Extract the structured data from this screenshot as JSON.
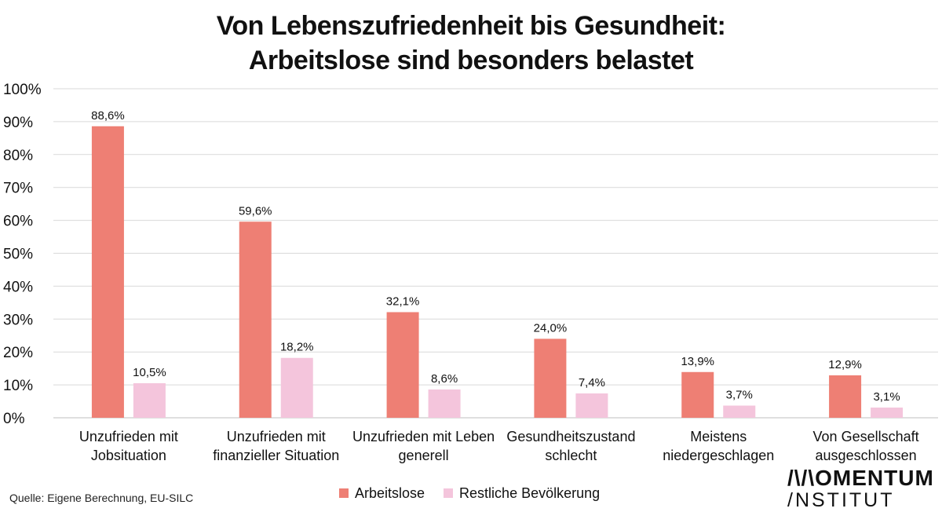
{
  "chart_data": {
    "type": "bar",
    "title_lines": [
      "Von Lebenszufriedenheit bis Gesundheit:",
      "Arbeitslose sind besonders belastet"
    ],
    "categories": [
      [
        "Unzufrieden mit",
        "Jobsituation"
      ],
      [
        "Unzufrieden mit",
        "finanzieller Situation"
      ],
      [
        "Unzufrieden mit Leben",
        "generell"
      ],
      [
        "Gesundheitszustand",
        "schlecht"
      ],
      [
        "Meistens",
        "niedergeschlagen"
      ],
      [
        "Von Gesellschaft",
        "ausgeschlossen"
      ]
    ],
    "series": [
      {
        "name": "Arbeitslose",
        "color": "#ee7f74",
        "values": [
          88.6,
          59.6,
          32.1,
          24.0,
          13.9,
          12.9
        ],
        "labels": [
          "88,6%",
          "59,6%",
          "32,1%",
          "24,0%",
          "13,9%",
          "12,9%"
        ]
      },
      {
        "name": "Restliche Bevölkerung",
        "color": "#f4c5dc",
        "values": [
          10.5,
          18.2,
          8.6,
          7.4,
          3.7,
          3.1
        ],
        "labels": [
          "10,5%",
          "18,2%",
          "8,6%",
          "7,4%",
          "3,7%",
          "3,1%"
        ]
      }
    ],
    "yticks": [
      "0%",
      "10%",
      "20%",
      "30%",
      "40%",
      "50%",
      "60%",
      "70%",
      "80%",
      "90%",
      "100%"
    ],
    "ylim": [
      0,
      100
    ],
    "grid": true,
    "legend": "bottom"
  },
  "source": "Quelle: Eigene Berechnung, EU-SILC",
  "logo": {
    "line1": "/\\/\\OMENTUM",
    "line2": "/NSTITUT"
  }
}
